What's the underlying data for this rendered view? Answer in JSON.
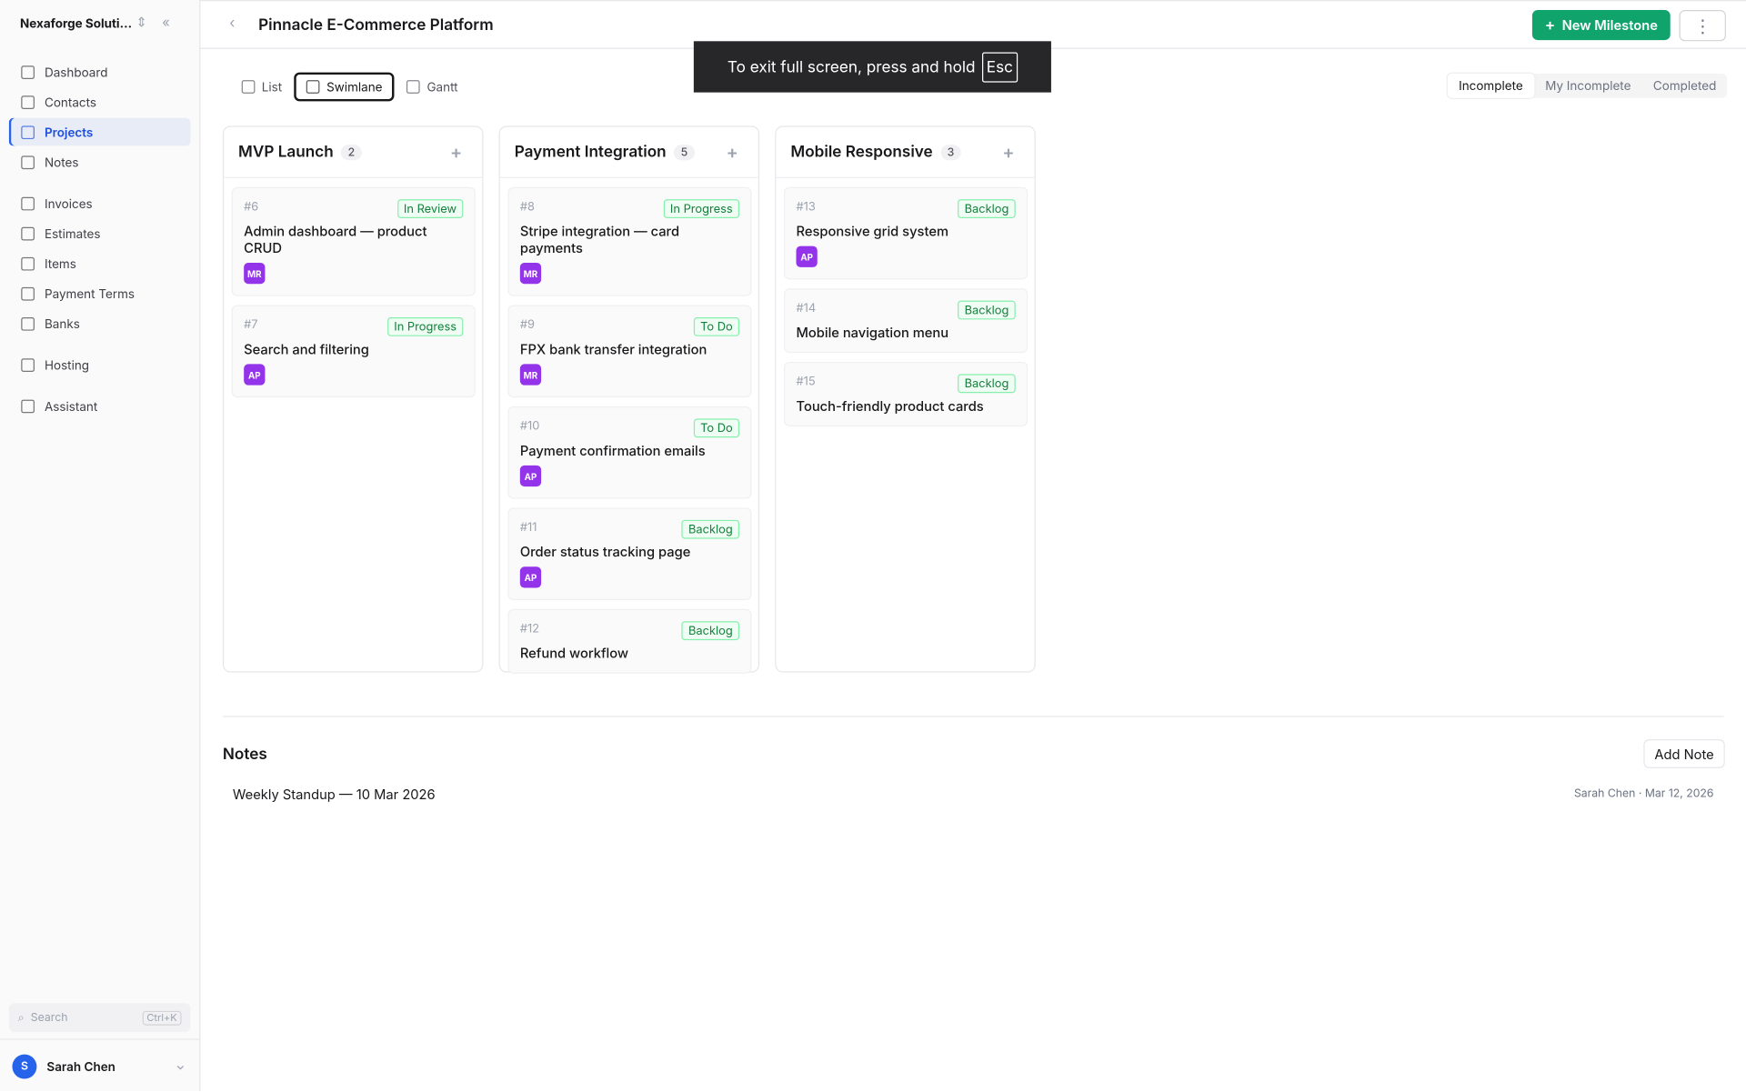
{
  "sidebar": {
    "workspace": "Nexaforge Soluti...",
    "nav": [
      [
        "Dashboard",
        "Contacts",
        "Projects",
        "Notes"
      ],
      [
        "Invoices",
        "Estimates",
        "Items",
        "Payment Terms",
        "Banks"
      ],
      [
        "Hosting"
      ],
      [
        "Assistant"
      ]
    ],
    "active_item": "Projects",
    "search": "Search",
    "shortcut": "Ctrl+K",
    "user": {
      "initial": "S",
      "name": "Sarah Chen"
    }
  },
  "header": {
    "title": "Pinnacle E-Commerce Platform",
    "primary_button": "New Milestone"
  },
  "toast": {
    "text": "To exit full screen, press and hold",
    "key": "Esc"
  },
  "views": [
    {
      "label": "List",
      "active": false
    },
    {
      "label": "Swimlane",
      "active": true
    },
    {
      "label": "Gantt",
      "active": false
    }
  ],
  "filters": [
    {
      "label": "Incomplete",
      "active": true
    },
    {
      "label": "My Incomplete",
      "active": false
    },
    {
      "label": "Completed",
      "active": false
    }
  ],
  "lanes": [
    {
      "title": "MVP Launch",
      "count": 2,
      "cards": [
        {
          "number": "#6",
          "status": "In Review",
          "title": "Admin dashboard — product CRUD",
          "assignee": "MR"
        },
        {
          "number": "#7",
          "status": "In Progress",
          "title": "Search and filtering",
          "assignee": "AP"
        }
      ]
    },
    {
      "title": "Payment Integration",
      "count": 5,
      "cards": [
        {
          "number": "#8",
          "status": "In Progress",
          "title": "Stripe integration — card payments",
          "assignee": "MR"
        },
        {
          "number": "#9",
          "status": "To Do",
          "title": "FPX bank transfer integration",
          "assignee": "MR"
        },
        {
          "number": "#10",
          "status": "To Do",
          "title": "Payment confirmation emails",
          "assignee": "AP"
        },
        {
          "number": "#11",
          "status": "Backlog",
          "title": "Order status tracking page",
          "assignee": "AP"
        },
        {
          "number": "#12",
          "status": "Backlog",
          "title": "Refund workflow",
          "assignee": null
        }
      ]
    },
    {
      "title": "Mobile Responsive",
      "count": 3,
      "cards": [
        {
          "number": "#13",
          "status": "Backlog",
          "title": "Responsive grid system",
          "assignee": "AP"
        },
        {
          "number": "#14",
          "status": "Backlog",
          "title": "Mobile navigation menu",
          "assignee": null
        },
        {
          "number": "#15",
          "status": "Backlog",
          "title": "Touch-friendly product cards",
          "assignee": null
        }
      ]
    }
  ],
  "notes": {
    "title": "Notes",
    "button": "Add Note",
    "items": [
      {
        "title": "Weekly Standup — 10 Mar 2026",
        "meta": "Sarah Chen · Mar 12, 2026"
      }
    ]
  }
}
